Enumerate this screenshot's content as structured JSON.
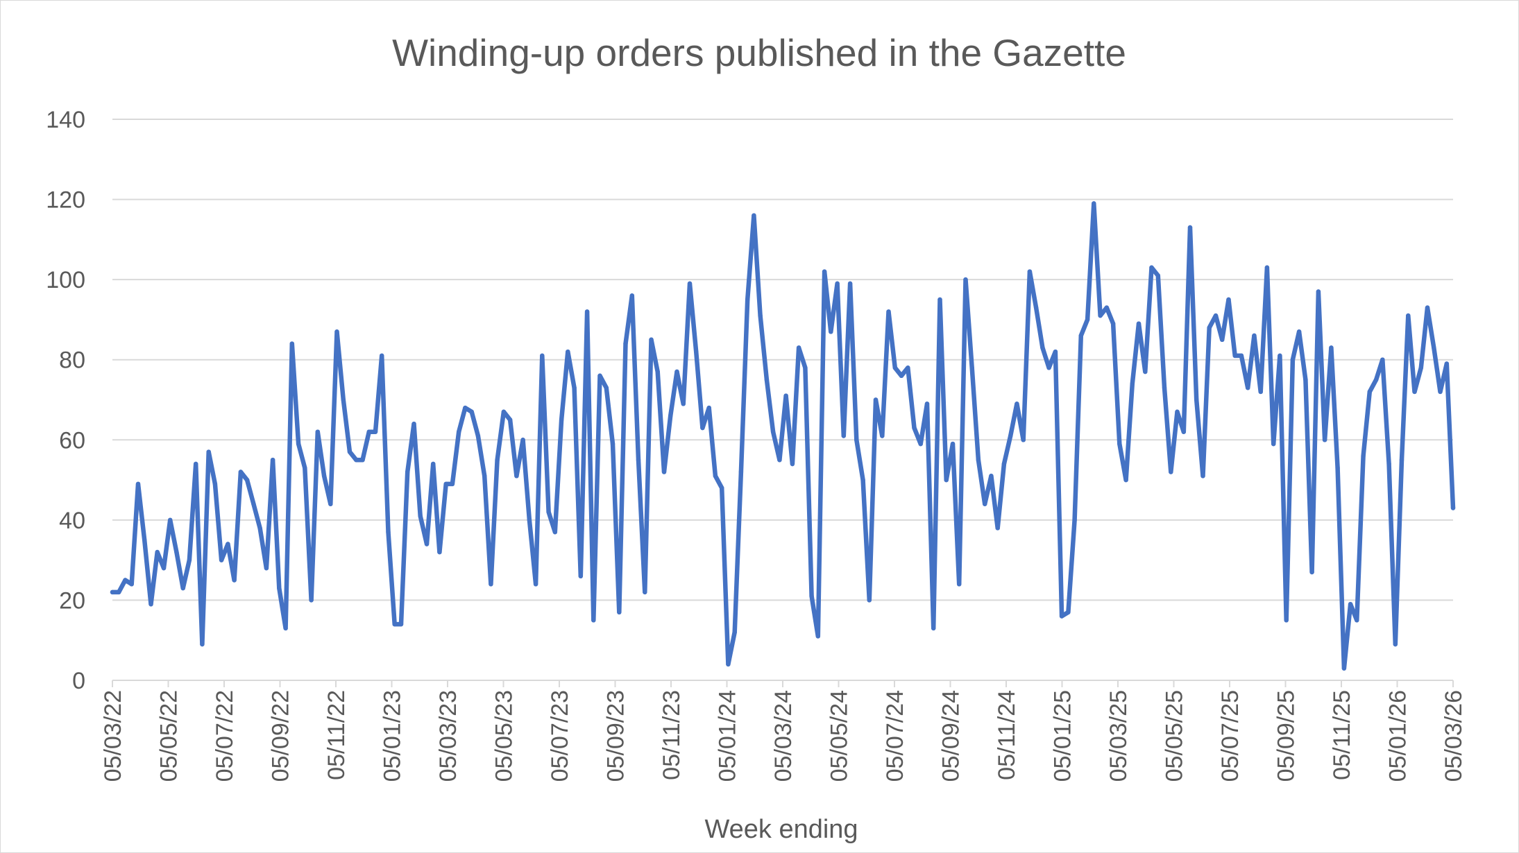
{
  "chart_data": {
    "type": "line",
    "title": "Winding-up orders published in the Gazette",
    "xlabel": "Week ending",
    "ylabel": "",
    "ylim": [
      0,
      140
    ],
    "yticks": [
      0,
      20,
      40,
      60,
      80,
      100,
      120,
      140
    ],
    "x_tick_labels": [
      "05/03/22",
      "05/05/22",
      "05/07/22",
      "05/09/22",
      "05/11/22",
      "05/01/23",
      "05/03/23",
      "05/05/23",
      "05/07/23",
      "05/09/23",
      "05/11/23",
      "05/01/24",
      "05/03/24",
      "05/05/24",
      "05/07/24",
      "05/09/24",
      "05/11/24",
      "05/01/25",
      "05/03/25",
      "05/05/25",
      "05/07/25",
      "05/09/25",
      "05/11/25",
      "05/01/26",
      "05/03/26"
    ],
    "grid": true,
    "legend": "none",
    "line_color": "#4472C4",
    "series": [
      {
        "values": [
          22,
          22,
          25,
          24,
          49,
          35,
          19,
          32,
          28,
          40,
          32,
          23,
          30,
          54,
          9,
          57,
          49,
          30,
          34,
          25,
          52,
          50,
          44,
          38,
          28,
          55,
          23,
          13,
          84,
          59,
          53,
          20,
          62,
          51,
          44,
          87,
          70,
          57,
          55,
          55,
          62,
          62,
          81,
          37,
          14,
          14,
          52,
          64,
          41,
          34,
          54,
          32,
          49,
          49,
          62,
          68,
          67,
          61,
          51,
          24,
          55,
          67,
          65,
          51,
          60,
          40,
          24,
          81,
          42,
          37,
          65,
          82,
          73,
          26,
          92,
          15,
          76,
          73,
          59,
          17,
          84,
          96,
          55,
          22,
          85,
          77,
          52,
          66,
          77,
          69,
          99,
          82,
          63,
          68,
          51,
          48,
          4,
          12,
          52,
          95,
          116,
          91,
          75,
          62,
          55,
          71,
          54,
          83,
          78,
          21,
          11,
          102,
          87,
          99,
          61,
          99,
          60,
          50,
          20,
          70,
          61,
          92,
          78,
          76,
          78,
          63,
          59,
          69,
          13,
          95,
          50,
          59,
          24,
          100,
          78,
          55,
          44,
          51,
          38,
          54,
          61,
          69,
          60,
          102,
          93,
          83,
          78,
          82,
          16,
          17,
          40,
          86,
          90,
          119,
          91,
          93,
          89,
          59,
          50,
          74,
          89,
          77,
          103,
          101,
          73,
          52,
          67,
          62,
          113,
          70,
          51,
          88,
          91,
          85,
          95,
          81,
          81,
          73,
          86,
          72,
          103,
          59,
          81,
          15,
          80,
          87,
          75,
          27,
          97,
          60,
          83,
          53,
          3,
          19,
          15,
          56,
          72,
          75,
          80,
          54,
          9,
          55,
          91,
          72,
          78,
          93,
          83,
          72,
          79,
          43
        ]
      }
    ]
  }
}
